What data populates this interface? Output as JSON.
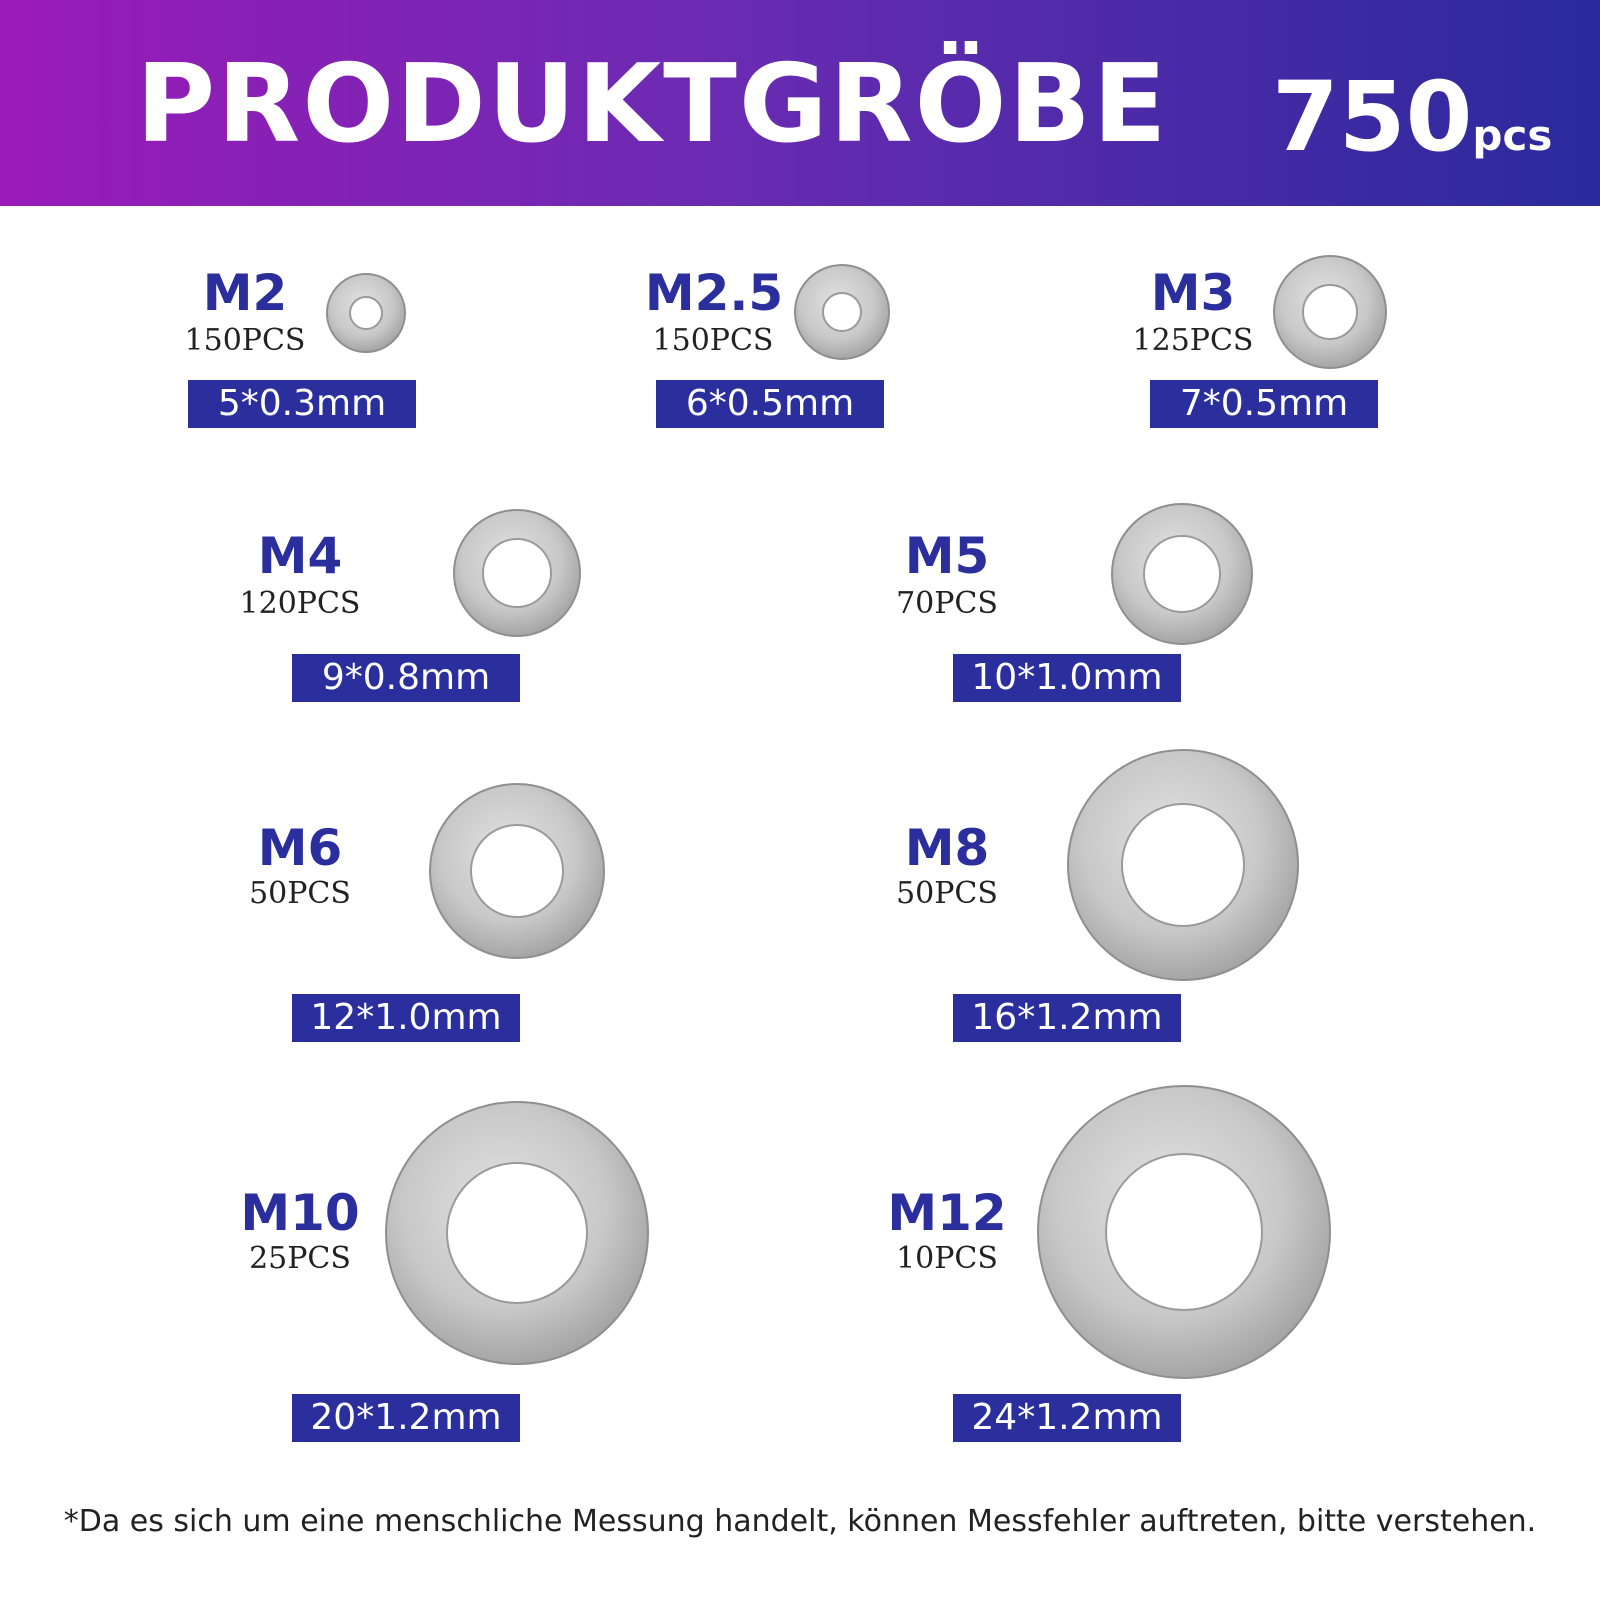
{
  "header": {
    "title": "PRODUKTGRÖBE",
    "count_number": "750",
    "count_unit": "pcs"
  },
  "washers": [
    {
      "size": "M2",
      "quantity": "150PCS",
      "dimension": "5*0.3mm"
    },
    {
      "size": "M2.5",
      "quantity": "150PCS",
      "dimension": "6*0.5mm"
    },
    {
      "size": "M3",
      "quantity": "125PCS",
      "dimension": "7*0.5mm"
    },
    {
      "size": "M4",
      "quantity": "120PCS",
      "dimension": "9*0.8mm"
    },
    {
      "size": "M5",
      "quantity": "70PCS",
      "dimension": "10*1.0mm"
    },
    {
      "size": "M6",
      "quantity": "50PCS",
      "dimension": "12*1.0mm"
    },
    {
      "size": "M8",
      "quantity": "50PCS",
      "dimension": "16*1.2mm"
    },
    {
      "size": "M10",
      "quantity": "25PCS",
      "dimension": "20*1.2mm"
    },
    {
      "size": "M12",
      "quantity": "10PCS",
      "dimension": "24*1.2mm"
    }
  ],
  "footnote": "*Da es sich um eine menschliche Messung handelt, können Messfehler auftreten, bitte verstehen.",
  "colors": {
    "accent_blue": "#2b2f9e",
    "banner_start": "#9a1ab8",
    "banner_end": "#2a2a9c",
    "washer_metal": "#c9c9c9"
  }
}
